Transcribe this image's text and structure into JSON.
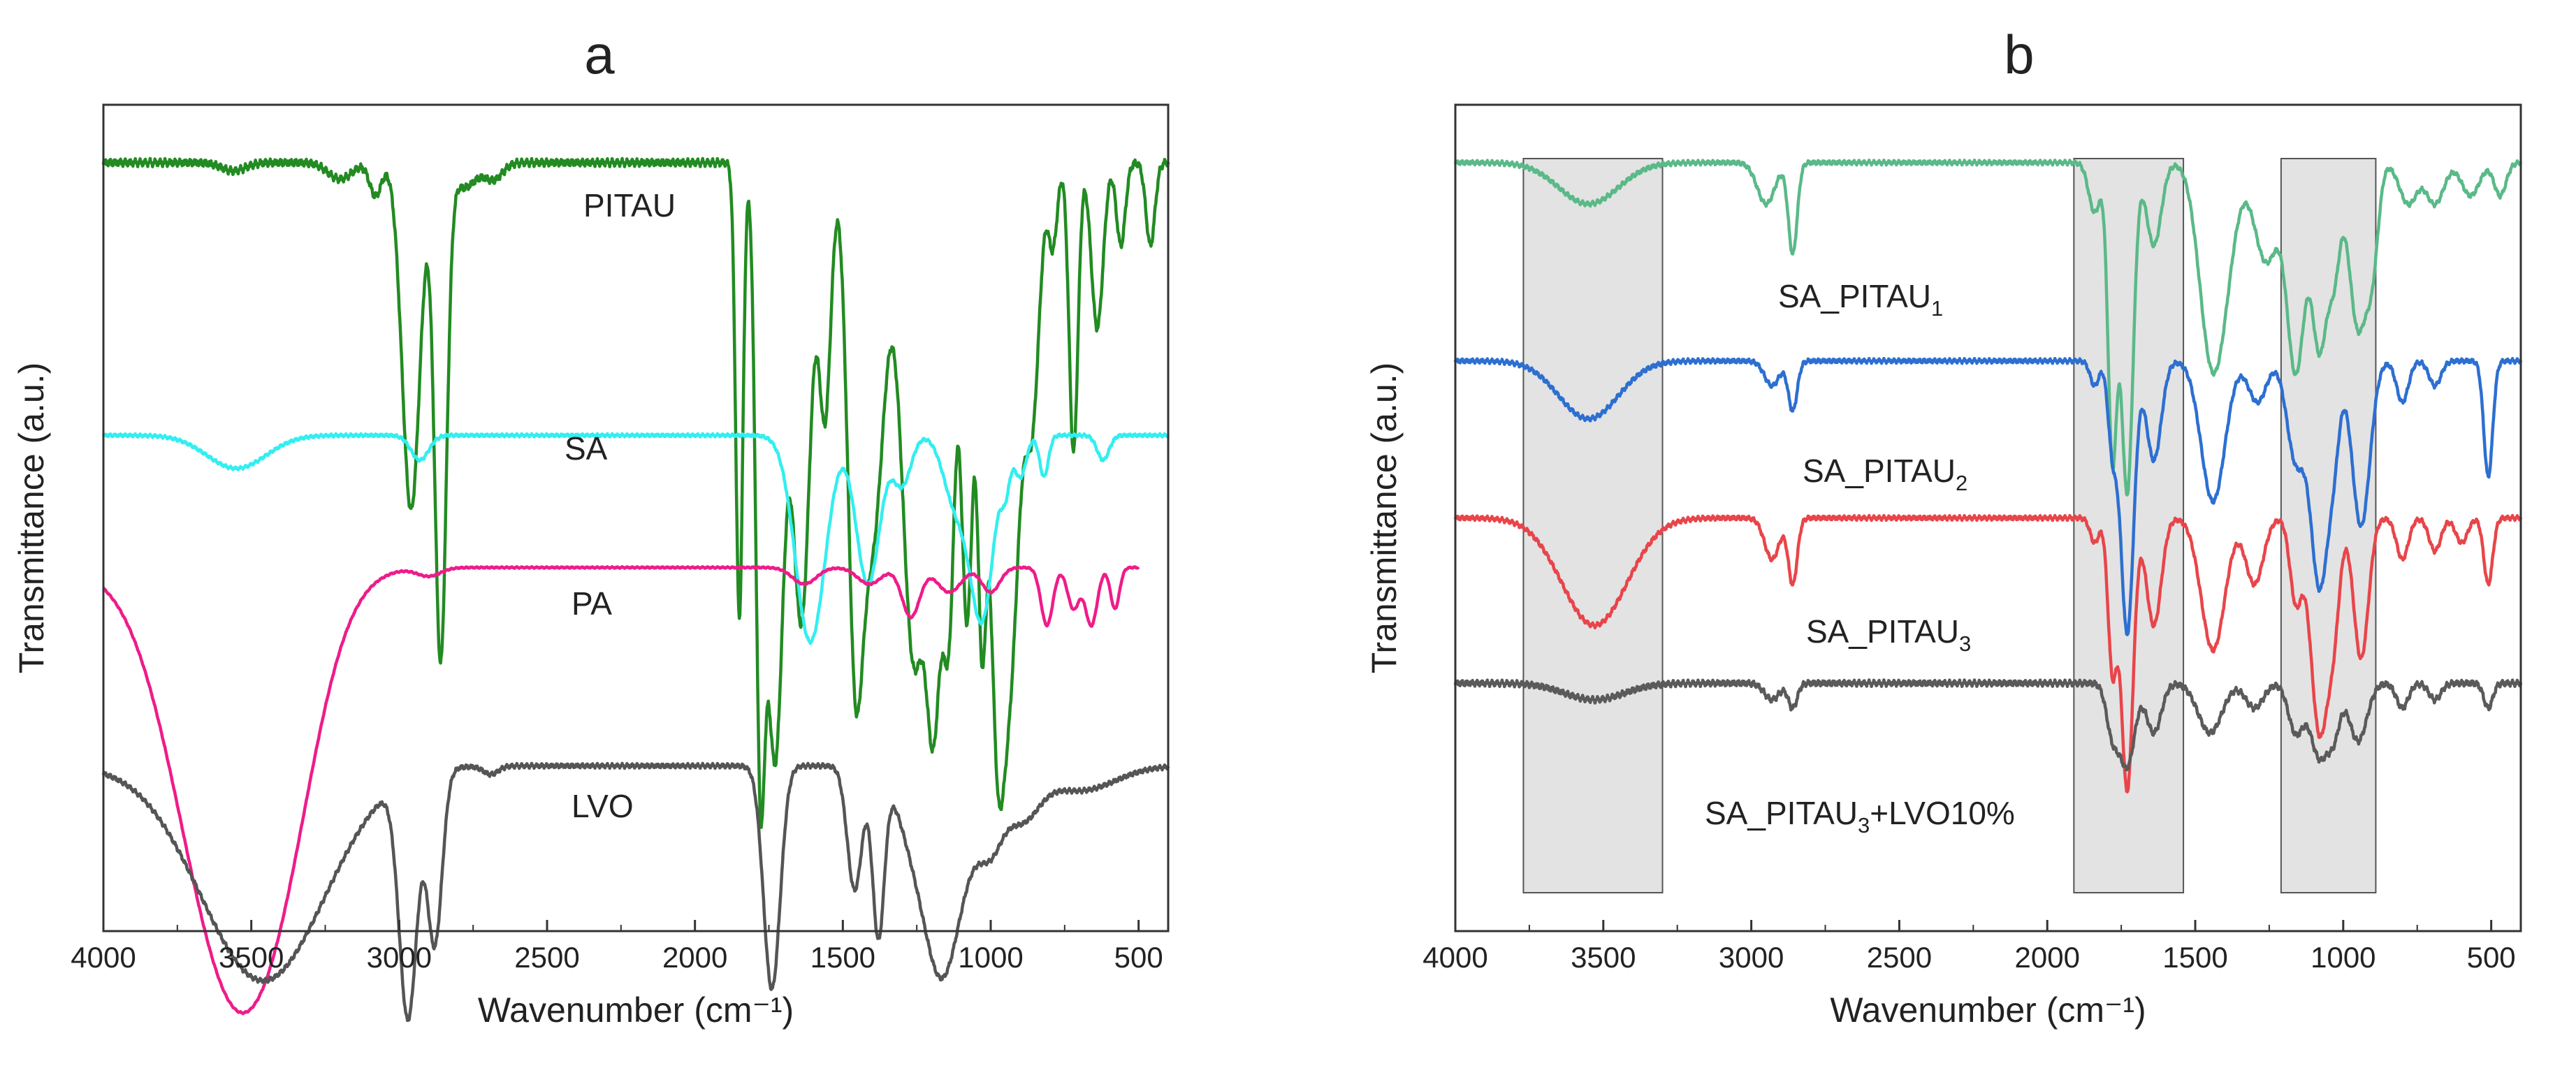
{
  "chart_data": [
    {
      "panel": "a",
      "type": "line",
      "xlabel": "Wavenumber (cm⁻¹)",
      "ylabel": "Transmittance (a.u.)",
      "xlim": [
        4000,
        400
      ],
      "xticks": [
        4000,
        3500,
        3000,
        2500,
        2000,
        1500,
        1000,
        500
      ],
      "xtick_labels": [
        "4000",
        "3500",
        "3000",
        "2500",
        "2000",
        "1500",
        "1000",
        "500"
      ],
      "y_ticks": "none (arbitrary units)",
      "series": [
        {
          "name": "PITAU",
          "label": "PITAU",
          "color": "#228b22",
          "baseline": 0.93,
          "noise": 0.005,
          "x_end": 400,
          "bands": [
            [
              3560,
              40,
              0.01
            ],
            [
              3200,
              40,
              0.02
            ],
            [
              3080,
              20,
              0.04
            ],
            [
              2960,
              30,
              0.42
            ],
            [
              2860,
              20,
              0.6
            ],
            [
              2780,
              40,
              0.03
            ],
            [
              2680,
              30,
              0.02
            ],
            [
              1850,
              12,
              0.55
            ],
            [
              1780,
              15,
              0.6
            ],
            [
              1730,
              30,
              0.72
            ],
            [
              1640,
              30,
              0.55
            ],
            [
              1560,
              20,
              0.3
            ],
            [
              1460,
              25,
              0.5
            ],
            [
              1400,
              40,
              0.45
            ],
            [
              1260,
              40,
              0.6
            ],
            [
              1190,
              25,
              0.55
            ],
            [
              1140,
              20,
              0.5
            ],
            [
              1080,
              20,
              0.55
            ],
            [
              1030,
              15,
              0.5
            ],
            [
              980,
              25,
              0.6
            ],
            [
              930,
              30,
              0.55
            ],
            [
              860,
              25,
              0.3
            ],
            [
              790,
              15,
              0.1
            ],
            [
              720,
              15,
              0.35
            ],
            [
              640,
              20,
              0.2
            ],
            [
              560,
              15,
              0.1
            ],
            [
              460,
              15,
              0.1
            ]
          ]
        },
        {
          "name": "SA",
          "label": "SA",
          "color": "#33eef0",
          "baseline": 0.6,
          "noise": 0.002,
          "x_end": 400,
          "bands": [
            [
              3550,
              100,
              0.04
            ],
            [
              2930,
              30,
              0.03
            ],
            [
              1610,
              50,
              0.25
            ],
            [
              1415,
              40,
              0.18
            ],
            [
              1300,
              30,
              0.06
            ],
            [
              1120,
              40,
              0.08
            ],
            [
              1030,
              40,
              0.22
            ],
            [
              950,
              15,
              0.05
            ],
            [
              900,
              20,
              0.05
            ],
            [
              820,
              15,
              0.05
            ],
            [
              620,
              20,
              0.03
            ]
          ]
        },
        {
          "name": "PA",
          "label": "PA",
          "color": "#ee1c8a",
          "baseline": 0.44,
          "noise": 0.001,
          "x_end": 500,
          "bands": [
            [
              3560,
              180,
              0.5
            ],
            [
              3380,
              120,
              0.1
            ],
            [
              2900,
              40,
              0.01
            ],
            [
              1630,
              40,
              0.02
            ],
            [
              1410,
              40,
              0.02
            ],
            [
              1270,
              30,
              0.06
            ],
            [
              1140,
              40,
              0.03
            ],
            [
              1000,
              30,
              0.03
            ],
            [
              810,
              20,
              0.07
            ],
            [
              720,
              20,
              0.05
            ],
            [
              660,
              20,
              0.07
            ],
            [
              580,
              15,
              0.05
            ]
          ]
        },
        {
          "name": "LVO",
          "label": "LVO",
          "color": "#555555",
          "baseline": 0.2,
          "noise": 0.003,
          "x_end": 400,
          "bands": [
            [
              3460,
              210,
              0.26
            ],
            [
              2970,
              30,
              0.29
            ],
            [
              2880,
              25,
              0.21
            ],
            [
              2690,
              25,
              0.01
            ],
            [
              1740,
              28,
              0.27
            ],
            [
              1460,
              25,
              0.15
            ],
            [
              1380,
              20,
              0.2
            ],
            [
              1250,
              60,
              0.1
            ],
            [
              1170,
              50,
              0.16
            ],
            [
              1100,
              60,
              0.11
            ],
            [
              1000,
              40,
              0.07
            ],
            [
              900,
              60,
              0.06
            ],
            [
              700,
              120,
              0.03
            ]
          ]
        }
      ],
      "annotations": []
    },
    {
      "panel": "b",
      "type": "line",
      "xlabel": "Wavenumber (cm⁻¹)",
      "ylabel": "Transmittance (a.u.)",
      "xlim": [
        4000,
        400
      ],
      "xticks": [
        4000,
        3500,
        3000,
        2500,
        2000,
        1500,
        1000,
        500
      ],
      "xtick_labels": [
        "4000",
        "3500",
        "3000",
        "2500",
        "2000",
        "1500",
        "1000",
        "500"
      ],
      "y_ticks": "none (arbitrary units)",
      "highlight_regions": [
        [
          3770,
          3300
        ],
        [
          1910,
          1540
        ],
        [
          1210,
          890
        ]
      ],
      "series": [
        {
          "name": "SA_PITAU1",
          "label": "SA_PITAU",
          "subscript": "1",
          "color": "#5ab988",
          "baseline": 0.93,
          "noise": 0.003,
          "x_end": 400,
          "bands": [
            [
              3550,
              100,
              0.05
            ],
            [
              2950,
              30,
              0.05
            ],
            [
              2860,
              15,
              0.11
            ],
            [
              1840,
              20,
              0.06
            ],
            [
              1780,
              15,
              0.35
            ],
            [
              1730,
              20,
              0.4
            ],
            [
              1640,
              25,
              0.1
            ],
            [
              1450,
              40,
              0.2
            ],
            [
              1400,
              40,
              0.1
            ],
            [
              1260,
              40,
              0.12
            ],
            [
              1160,
              30,
              0.25
            ],
            [
              1080,
              25,
              0.22
            ],
            [
              1030,
              20,
              0.12
            ],
            [
              950,
              30,
              0.2
            ],
            [
              900,
              20,
              0.1
            ],
            [
              780,
              30,
              0.05
            ],
            [
              690,
              30,
              0.05
            ],
            [
              570,
              30,
              0.04
            ],
            [
              470,
              20,
              0.04
            ]
          ]
        },
        {
          "name": "SA_PITAU2",
          "label": "SA_PITAU",
          "subscript": "2",
          "color": "#2d6fd1",
          "baseline": 0.69,
          "noise": 0.003,
          "x_end": 400,
          "bands": [
            [
              3550,
              100,
              0.07
            ],
            [
              2930,
              25,
              0.03
            ],
            [
              2860,
              15,
              0.06
            ],
            [
              1840,
              15,
              0.03
            ],
            [
              1780,
              15,
              0.1
            ],
            [
              1730,
              22,
              0.33
            ],
            [
              1640,
              25,
              0.12
            ],
            [
              1440,
              40,
              0.17
            ],
            [
              1290,
              30,
              0.05
            ],
            [
              1160,
              30,
              0.12
            ],
            [
              1080,
              30,
              0.27
            ],
            [
              1030,
              20,
              0.08
            ],
            [
              940,
              30,
              0.2
            ],
            [
              800,
              20,
              0.05
            ],
            [
              690,
              20,
              0.03
            ],
            [
              510,
              15,
              0.14
            ]
          ]
        },
        {
          "name": "SA_PITAU3",
          "label": "SA_PITAU",
          "subscript": "3",
          "color": "#e8454a",
          "baseline": 0.5,
          "noise": 0.003,
          "x_end": 400,
          "bands": [
            [
              3530,
              110,
              0.13
            ],
            [
              2930,
              25,
              0.05
            ],
            [
              2860,
              15,
              0.08
            ],
            [
              1840,
              15,
              0.03
            ],
            [
              1780,
              15,
              0.18
            ],
            [
              1730,
              20,
              0.33
            ],
            [
              1640,
              25,
              0.13
            ],
            [
              1440,
              40,
              0.16
            ],
            [
              1300,
              30,
              0.08
            ],
            [
              1160,
              20,
              0.1
            ],
            [
              1080,
              30,
              0.26
            ],
            [
              1030,
              20,
              0.1
            ],
            [
              940,
              25,
              0.17
            ],
            [
              800,
              20,
              0.05
            ],
            [
              690,
              20,
              0.04
            ],
            [
              600,
              20,
              0.03
            ],
            [
              510,
              15,
              0.08
            ]
          ]
        },
        {
          "name": "SA_PITAU3+LVO10%",
          "label": "SA_PITAU",
          "subscript": "3",
          "suffix": "+LVO10%",
          "color": "#5a5a5a",
          "baseline": 0.3,
          "noise": 0.004,
          "x_end": 400,
          "bands": [
            [
              3530,
              100,
              0.02
            ],
            [
              2930,
              25,
              0.02
            ],
            [
              2860,
              15,
              0.03
            ],
            [
              1780,
              20,
              0.06
            ],
            [
              1730,
              25,
              0.1
            ],
            [
              1640,
              25,
              0.06
            ],
            [
              1450,
              40,
              0.06
            ],
            [
              1300,
              30,
              0.03
            ],
            [
              1160,
              25,
              0.06
            ],
            [
              1080,
              30,
              0.09
            ],
            [
              1030,
              20,
              0.05
            ],
            [
              950,
              30,
              0.07
            ],
            [
              800,
              20,
              0.03
            ],
            [
              690,
              20,
              0.02
            ],
            [
              510,
              15,
              0.03
            ]
          ]
        }
      ],
      "annotations": []
    }
  ]
}
